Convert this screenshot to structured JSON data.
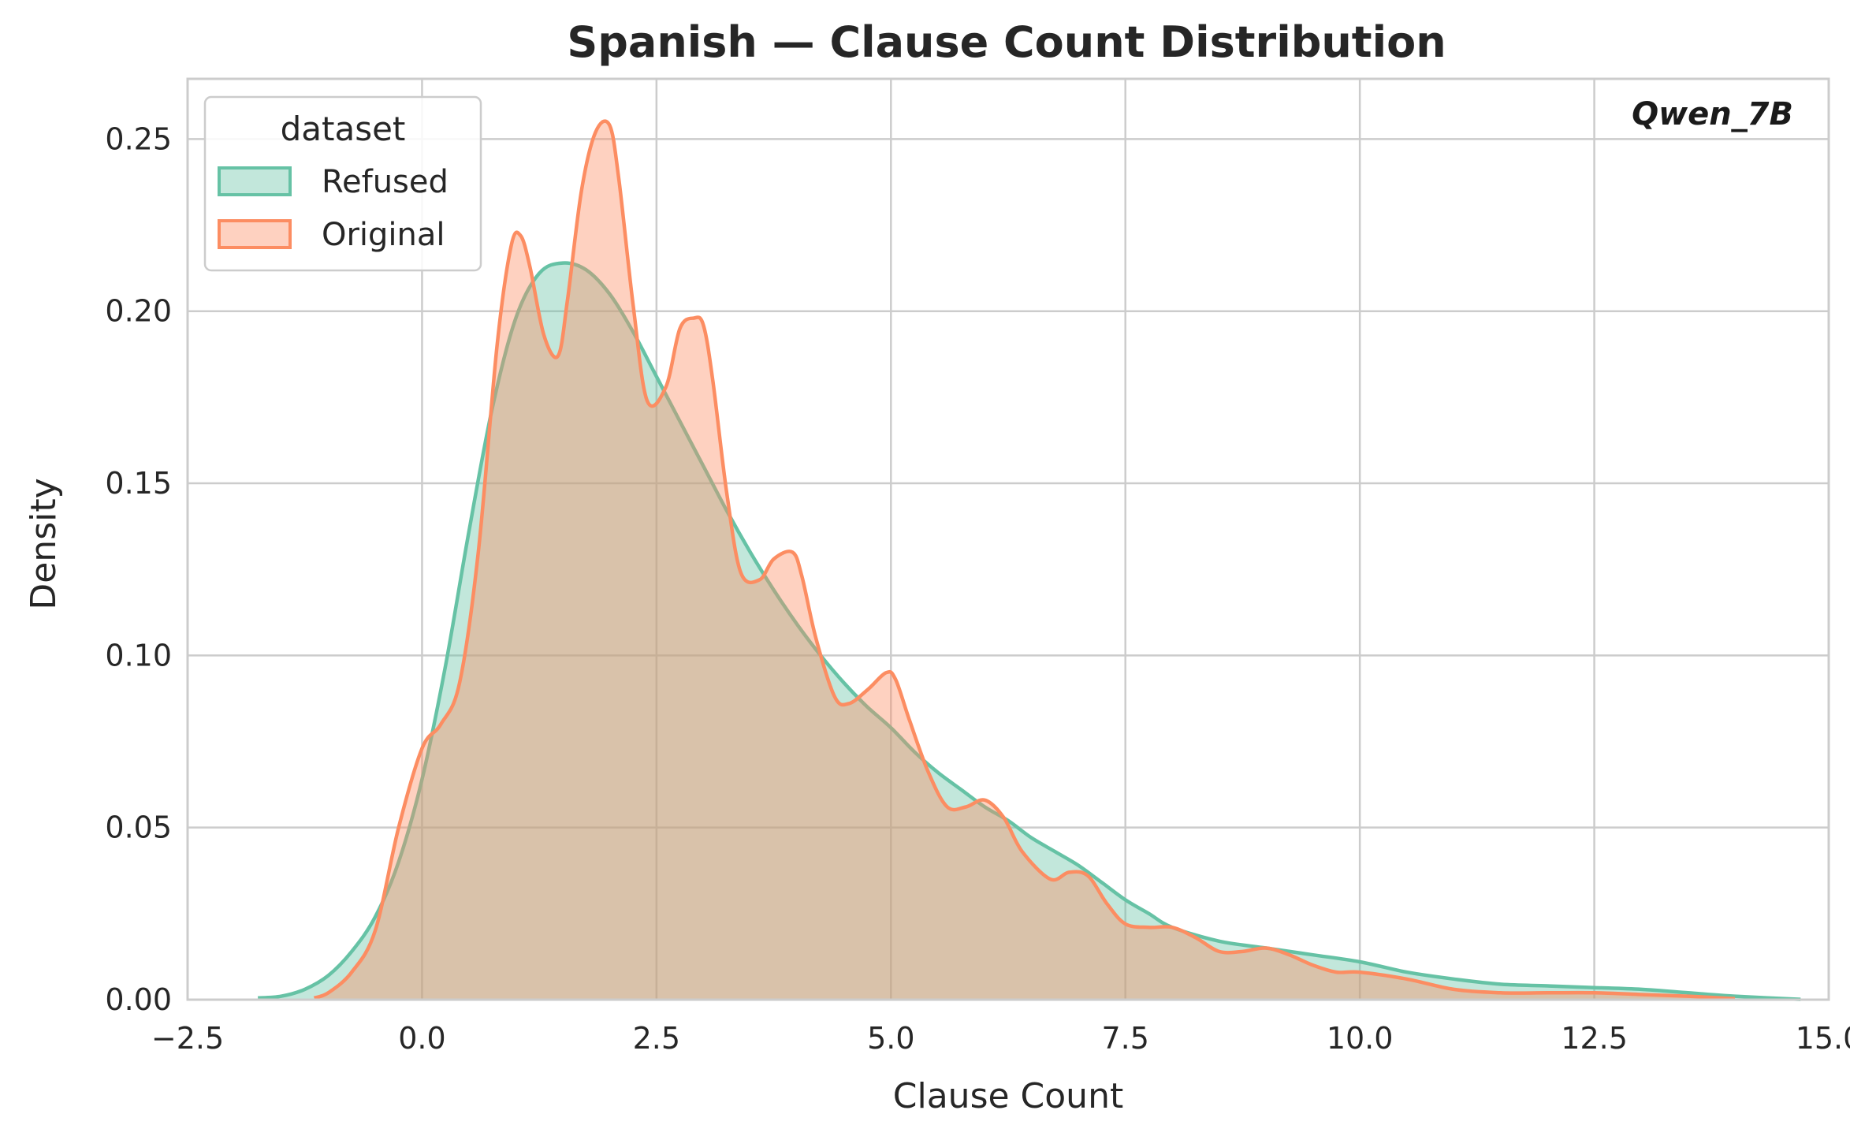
{
  "chart_data": {
    "type": "area",
    "title": "Spanish — Clause Count Distribution",
    "xlabel": "Clause Count",
    "ylabel": "Density",
    "xlim": [
      -2.5,
      15.0
    ],
    "ylim": [
      0.0,
      0.2675
    ],
    "xticks": [
      -2.5,
      0.0,
      2.5,
      5.0,
      7.5,
      10.0,
      12.5,
      15.0
    ],
    "xtick_labels": [
      "−2.5",
      "0.0",
      "2.5",
      "5.0",
      "7.5",
      "10.0",
      "12.5",
      "15.0"
    ],
    "yticks": [
      0.0,
      0.05,
      0.1,
      0.15,
      0.2,
      0.25
    ],
    "ytick_labels": [
      "0.00",
      "0.05",
      "0.10",
      "0.15",
      "0.20",
      "0.25"
    ],
    "grid": true,
    "legend_title": "dataset",
    "legend_placement": "top-left",
    "annotation": "Qwen_7B",
    "series": [
      {
        "name": "Refused",
        "color": "#66c2a5",
        "x": [
          -1.75,
          -1.5,
          -1.25,
          -1.0,
          -0.75,
          -0.5,
          -0.25,
          0.0,
          0.25,
          0.5,
          0.75,
          1.0,
          1.25,
          1.5,
          1.75,
          2.0,
          2.25,
          2.5,
          2.75,
          3.0,
          3.25,
          3.5,
          3.75,
          4.0,
          4.25,
          4.5,
          4.75,
          5.0,
          5.25,
          5.5,
          5.75,
          6.0,
          6.25,
          6.5,
          6.75,
          7.0,
          7.25,
          7.5,
          7.75,
          8.0,
          8.5,
          9.0,
          9.5,
          10.0,
          10.5,
          11.0,
          11.5,
          12.0,
          12.5,
          13.0,
          13.5,
          14.0,
          14.7
        ],
        "y": [
          0.0005,
          0.001,
          0.003,
          0.007,
          0.014,
          0.024,
          0.04,
          0.064,
          0.097,
          0.136,
          0.172,
          0.198,
          0.211,
          0.214,
          0.212,
          0.205,
          0.194,
          0.181,
          0.168,
          0.155,
          0.142,
          0.13,
          0.119,
          0.109,
          0.1,
          0.092,
          0.085,
          0.079,
          0.072,
          0.066,
          0.061,
          0.056,
          0.052,
          0.047,
          0.043,
          0.039,
          0.034,
          0.029,
          0.025,
          0.021,
          0.017,
          0.015,
          0.013,
          0.011,
          0.008,
          0.006,
          0.0045,
          0.004,
          0.0035,
          0.003,
          0.002,
          0.001,
          0.0001
        ]
      },
      {
        "name": "Original",
        "color": "#fc8d62",
        "x": [
          -1.15,
          -1.0,
          -0.75,
          -0.5,
          -0.25,
          0.0,
          0.2,
          0.4,
          0.6,
          0.8,
          0.95,
          1.05,
          1.15,
          1.3,
          1.45,
          1.55,
          1.7,
          1.85,
          2.0,
          2.1,
          2.25,
          2.4,
          2.6,
          2.75,
          2.9,
          3.0,
          3.1,
          3.25,
          3.4,
          3.6,
          3.75,
          3.95,
          4.05,
          4.2,
          4.4,
          4.55,
          4.75,
          4.95,
          5.05,
          5.2,
          5.4,
          5.6,
          5.8,
          6.0,
          6.2,
          6.4,
          6.7,
          6.9,
          7.1,
          7.3,
          7.5,
          7.75,
          8.0,
          8.25,
          8.5,
          8.75,
          9.0,
          9.25,
          9.5,
          9.75,
          10.0,
          10.5,
          11.0,
          11.5,
          12.0,
          12.5,
          13.0,
          13.5,
          14.0
        ],
        "y": [
          0.0005,
          0.002,
          0.008,
          0.02,
          0.05,
          0.073,
          0.08,
          0.092,
          0.13,
          0.19,
          0.219,
          0.222,
          0.213,
          0.193,
          0.187,
          0.203,
          0.235,
          0.252,
          0.254,
          0.238,
          0.202,
          0.174,
          0.178,
          0.195,
          0.198,
          0.196,
          0.18,
          0.147,
          0.124,
          0.122,
          0.128,
          0.13,
          0.123,
          0.105,
          0.088,
          0.086,
          0.09,
          0.095,
          0.093,
          0.081,
          0.066,
          0.056,
          0.056,
          0.058,
          0.053,
          0.043,
          0.035,
          0.037,
          0.036,
          0.028,
          0.022,
          0.021,
          0.021,
          0.018,
          0.014,
          0.014,
          0.015,
          0.013,
          0.01,
          0.008,
          0.008,
          0.006,
          0.003,
          0.002,
          0.002,
          0.002,
          0.0015,
          0.001,
          0.0003
        ]
      }
    ]
  }
}
